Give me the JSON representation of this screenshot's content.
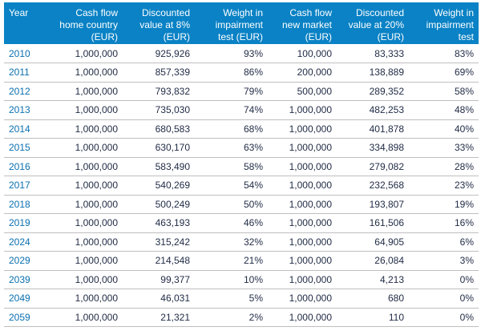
{
  "columns": [
    [
      "Year"
    ],
    [
      "Cash flow",
      "home country",
      "(EUR)"
    ],
    [
      "Discounted",
      "value at 8%",
      "(EUR)"
    ],
    [
      "Weight in",
      "impairment",
      "test (EUR)"
    ],
    [
      "Cash flow",
      "new market",
      "(EUR)"
    ],
    [
      "Discounted",
      "value at 20%",
      "(EUR)"
    ],
    [
      "Weight in",
      "impairment",
      "test"
    ]
  ],
  "rows": [
    [
      "2010",
      "1,000,000",
      "925,926",
      "93%",
      "100,000",
      "83,333",
      "83%"
    ],
    [
      "2011",
      "1,000,000",
      "857,339",
      "86%",
      "200,000",
      "138,889",
      "69%"
    ],
    [
      "2012",
      "1,000,000",
      "793,832",
      "79%",
      "500,000",
      "289,352",
      "58%"
    ],
    [
      "2013",
      "1,000,000",
      "735,030",
      "74%",
      "1,000,000",
      "482,253",
      "48%"
    ],
    [
      "2014",
      "1,000,000",
      "680,583",
      "68%",
      "1,000,000",
      "401,878",
      "40%"
    ],
    [
      "2015",
      "1,000,000",
      "630,170",
      "63%",
      "1,000,000",
      "334,898",
      "33%"
    ],
    [
      "2016",
      "1,000,000",
      "583,490",
      "58%",
      "1,000,000",
      "279,082",
      "28%"
    ],
    [
      "2017",
      "1,000,000",
      "540,269",
      "54%",
      "1,000,000",
      "232,568",
      "23%"
    ],
    [
      "2018",
      "1,000,000",
      "500,249",
      "50%",
      "1,000,000",
      "193,807",
      "19%"
    ],
    [
      "2019",
      "1,000,000",
      "463,193",
      "46%",
      "1,000,000",
      "161,506",
      "16%"
    ],
    [
      "2024",
      "1,000,000",
      "315,242",
      "32%",
      "1,000,000",
      "64,905",
      "6%"
    ],
    [
      "2029",
      "1,000,000",
      "214,548",
      "21%",
      "1,000,000",
      "26,084",
      "3%"
    ],
    [
      "2039",
      "1,000,000",
      "99,377",
      "10%",
      "1,000,000",
      "4,213",
      "0%"
    ],
    [
      "2049",
      "1,000,000",
      "46,031",
      "5%",
      "1,000,000",
      "680",
      "0%"
    ],
    [
      "2059",
      "1,000,000",
      "21,321",
      "2%",
      "1,000,000",
      "110",
      "0%"
    ]
  ],
  "colors": {
    "header_bg": "#0a82c5",
    "header_text": "#ffffff",
    "year_text": "#0a6fb0",
    "body_text": "#1f2a44",
    "row_rule": "#bfbfbf"
  }
}
